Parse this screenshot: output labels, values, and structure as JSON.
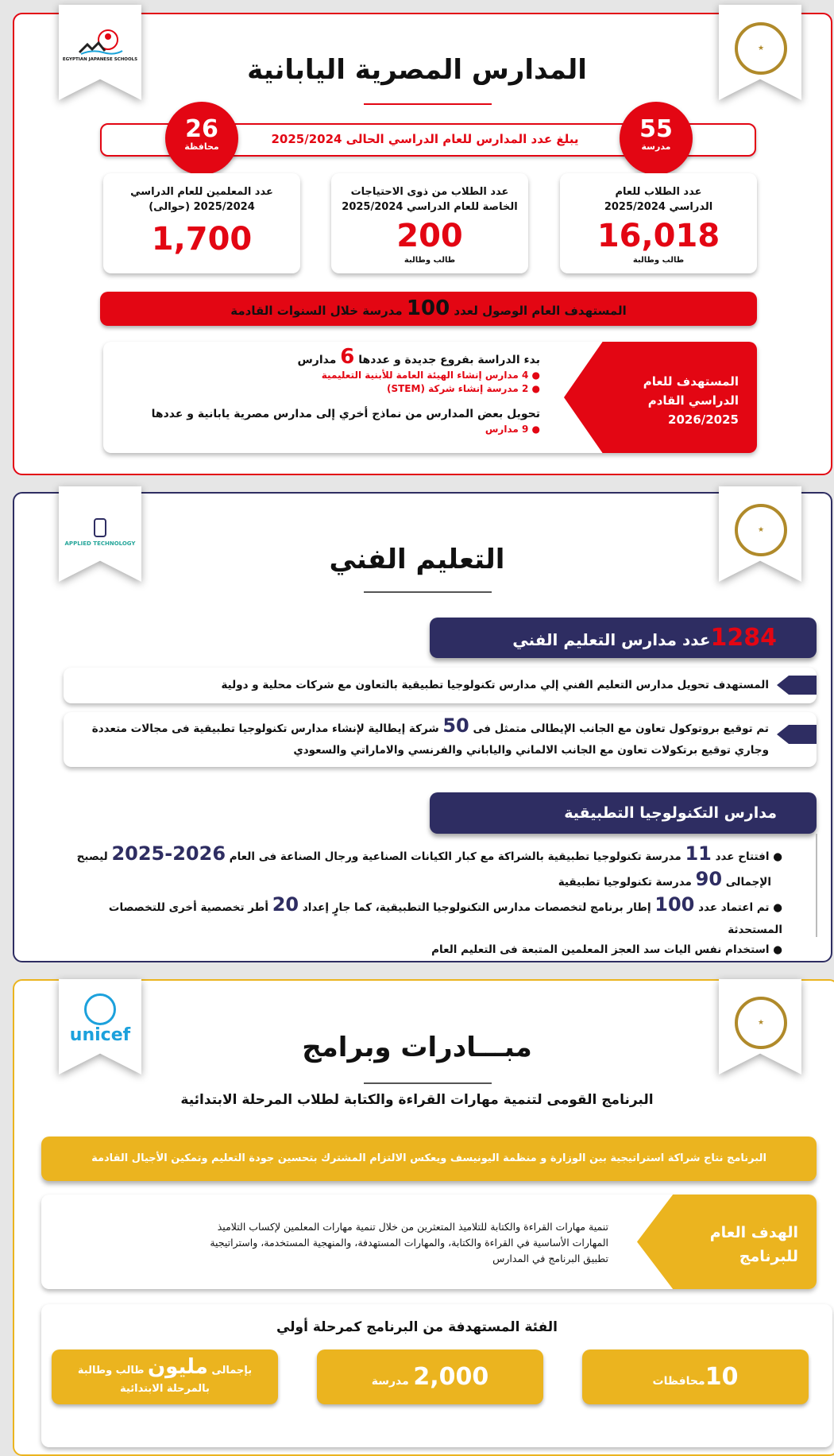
{
  "colors": {
    "red": "#e30613",
    "navy": "#2e2d62",
    "gold": "#ebb41f"
  },
  "s1": {
    "logo_left": "EGYPTIAN JAPANESE SCHOOLS المدارس المصرية اليابانية",
    "seal": "MINISTRY OF EDUCATION AND TECHNICAL EDUCATION",
    "title": "المدارس المصرية اليابانية",
    "schools_count": "55",
    "schools_unit": "مدرسة",
    "gov_count": "26",
    "gov_unit": "محافظة",
    "banner": "يبلغ عدد المدارس للعام الدراسي الحالى 2025/2024",
    "cards": [
      {
        "label1": "عدد الطلاب للعام",
        "label2": "الدراسي 2025/2024",
        "value": "16,018",
        "unit": "طالب وطالبة"
      },
      {
        "label1": "عدد الطلاب من ذوى الاحتياجات",
        "label2": "الخاصة للعام الدراسي 2025/2024",
        "value": "200",
        "unit": "طالب وطالبة"
      },
      {
        "label1": "عدد المعلمين للعام الدراسي",
        "label2": "2025/2024 (حوالى)",
        "value": "1,700",
        "unit": ""
      }
    ],
    "goal_pre": "المستهدف العام الوصول لعدد",
    "goal_num": "100",
    "goal_post": "مدرسة خلال السنوات القادمة",
    "target_label": [
      "المستهدف للعام",
      "الدراسي القادم",
      "2026/2025"
    ],
    "t1_pre": "بدء الدراسة بفروع جديدة و عددها",
    "t1_num": "6",
    "t1_post": "مدارس",
    "t1_items": [
      "4 مدارس إنشاء الهيئة العامة للأبنية التعليمية",
      "2 مدرسة إنشاء شركة (STEM)"
    ],
    "t2": "تحويل بعض المدارس من نماذج أخري إلى مدارس مصرية يابانية و عددها",
    "t2_items": [
      "9 مدارس"
    ]
  },
  "s2": {
    "logo_left": "التكنولوجيا التطبيقية APPLIED TECHNOLOGY وزارة التربية والتعليم والتعليم الفني",
    "title": "التعليم الفني",
    "h1_num": "1284",
    "h1_text": "عدد مدارس التعليم الفني",
    "p1": "المستهدف تحويل مدارس التعليم الفني إلي مدارس تكنولوجيا تطبيقية بالتعاون مع شركات محلية و دولية",
    "p2_pre": "تم توقيع بروتوكول تعاون مع الجانب الإيطالى متمثل فى",
    "p2_num": "50",
    "p2_post": "شركة إيطالية لإنشاء مدارس تكنولوجيا تطبيقية فى مجالات متعددة",
    "p2_line2": "وجاري توقيع برتكولات تعاون مع الجانب الالماني والياباني والفرنسي والاماراتي والسعودي",
    "h2": "مدارس التكنولوجيا التطبيقية",
    "b1_a": "افتتاح عدد",
    "b1_n1": "11",
    "b1_b": "مدرسة تكنولوجيا تطبيقية بالشراكة مع كبار الكيانات الصناعية ورجال الصناعة فى العام",
    "b1_n2": "2026-2025",
    "b1_c": "ليصبح",
    "b1_d": "الإجمالى",
    "b1_n3": "90",
    "b1_e": "مدرسة تكنولوجيا تطبيقية",
    "b2_a": "تم اعتماد عدد",
    "b2_n1": "100",
    "b2_b": "إطار برنامج لتخصصات مدارس التكنولوجيا التطبيقية، كما جارٍ إعداد",
    "b2_n2": "20",
    "b2_c": "أطر تخصصية أخرى للتخصصات المستحدثة",
    "b3": "استخدام نفس اليات سد العجز المعلمين المتبعة فى التعليم العام"
  },
  "s3": {
    "logo_left": "unicef",
    "title": "مبـــادرات وبرامج",
    "subtitle": "البرنامج القومى لتنمية مهارات القراءة والكتابة لطلاب المرحلة الابتدائية",
    "bar": "البرنامج نتاج شراكة استراتيجية بين الوزارة و منظمة اليونيسف ويعكس الالتزام المشترك بتحسين جودة التعليم وتمكين الأجيال القادمة",
    "goal_label": [
      "الهدف العام",
      "للبرنامج"
    ],
    "goal_text": [
      "تنمية مهارات القراءة والكتابة للتلاميذ المتعثرين من خلال تنمية مهارات المعلمين لإكساب التلاميذ",
      "المهارات الأساسية في القراءة والكتابة، والمهارات المستهدفة، والمنهجية المستخدمة، واستراتيجية",
      "تطبيق البرنامج في المدارس"
    ],
    "target_title": "الفئة المستهدفة من البرنامج كمرحلة أولي",
    "boxes": [
      {
        "num": "10",
        "unit": "محافظات"
      },
      {
        "num": "2,000",
        "unit": "مدرسة"
      },
      {
        "pre": "بإجمالى",
        "num": "مليون",
        "unit": "طالب وطالبة",
        "line2": "بالمرحلة الابتدائية"
      }
    ]
  }
}
